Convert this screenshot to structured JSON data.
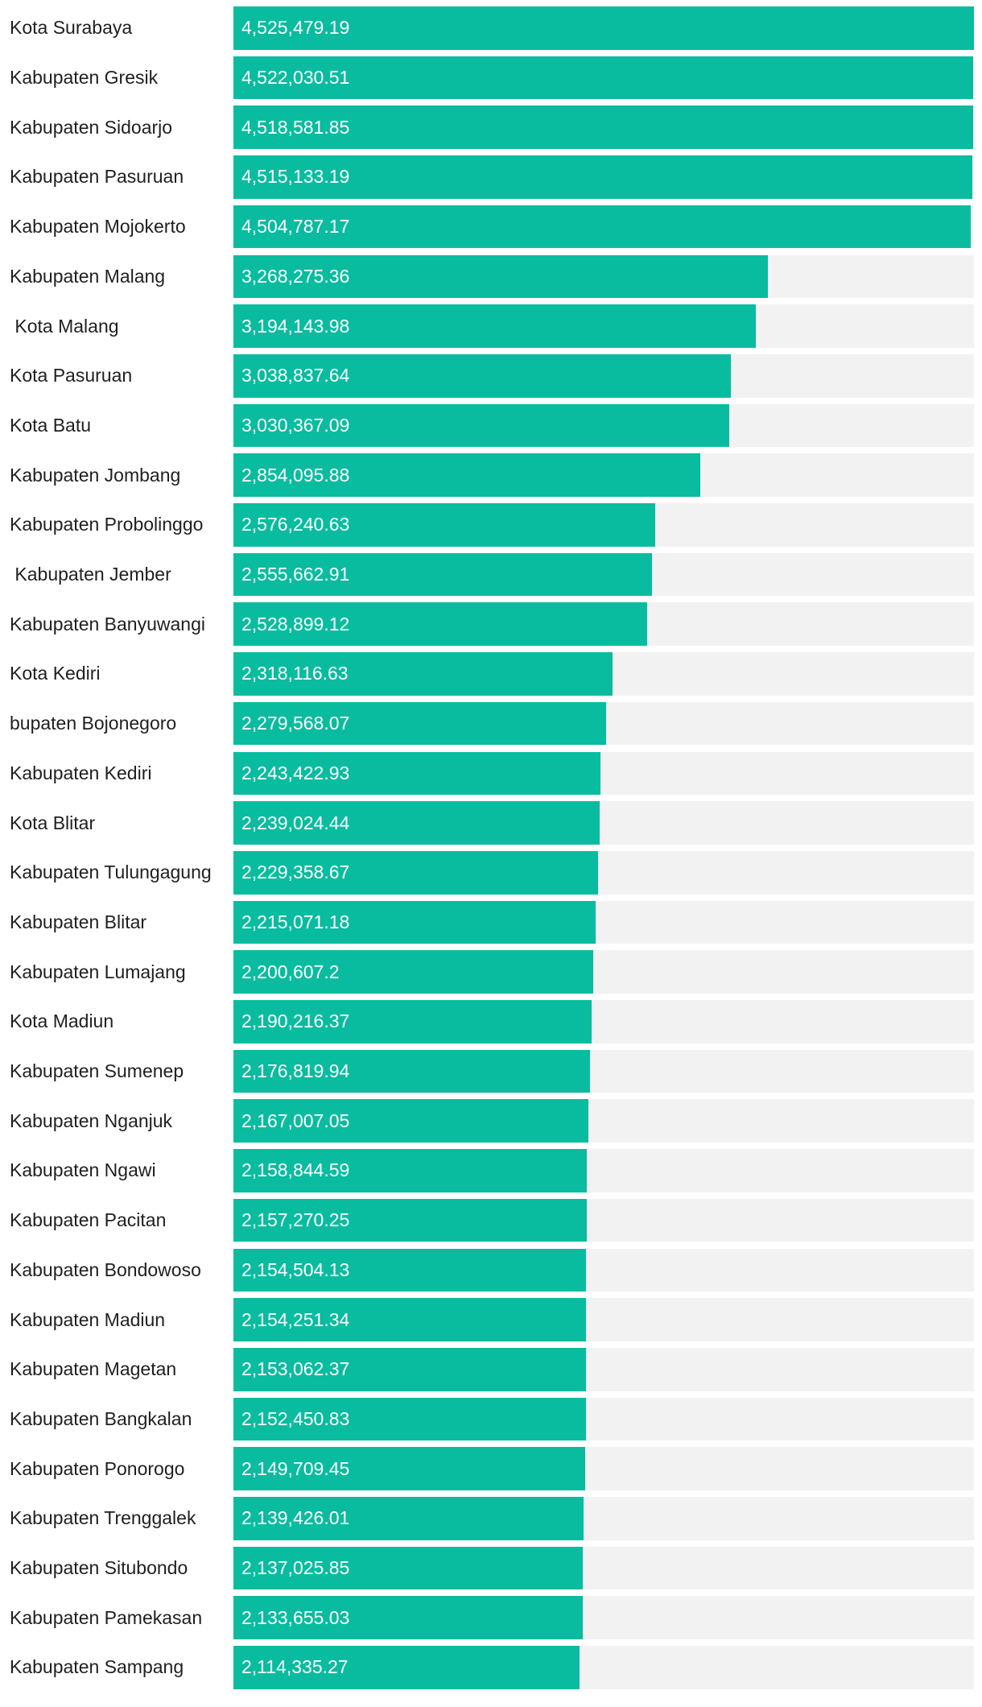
{
  "chart_data": {
    "type": "bar",
    "orientation": "horizontal",
    "title": "",
    "xlabel": "",
    "ylabel": "",
    "xlim": [
      0,
      4525479.19
    ],
    "grid": false,
    "legend": "none",
    "bar_color": "#0abc9f",
    "track_color": "#f2f2f2",
    "categories": [
      "Kota Surabaya",
      "Kabupaten Gresik",
      "Kabupaten Sidoarjo",
      "Kabupaten Pasuruan",
      "Kabupaten Mojokerto",
      "Kabupaten Malang",
      " Kota Malang",
      "Kota Pasuruan",
      "Kota Batu",
      "Kabupaten Jombang",
      "Kabupaten Probolinggo",
      " Kabupaten Jember",
      "Kabupaten Banyuwangi",
      "Kota Kediri",
      "bupaten Bojonegoro",
      "Kabupaten Kediri",
      "Kota Blitar",
      "Kabupaten Tulungagung",
      "Kabupaten Blitar",
      "Kabupaten Lumajang",
      "Kota Madiun",
      "Kabupaten Sumenep",
      "Kabupaten Nganjuk",
      "Kabupaten Ngawi",
      "Kabupaten Pacitan",
      "Kabupaten Bondowoso",
      "Kabupaten Madiun",
      "Kabupaten Magetan",
      "Kabupaten Bangkalan",
      "Kabupaten Ponorogo",
      "Kabupaten Trenggalek",
      "Kabupaten Situbondo",
      "Kabupaten Pamekasan",
      "Kabupaten Sampang"
    ],
    "values": [
      4525479.19,
      4522030.51,
      4518581.85,
      4515133.19,
      4504787.17,
      3268275.36,
      3194143.98,
      3038837.64,
      3030367.09,
      2854095.88,
      2576240.63,
      2555662.91,
      2528899.12,
      2318116.63,
      2279568.07,
      2243422.93,
      2239024.44,
      2229358.67,
      2215071.18,
      2200607.2,
      2190216.37,
      2176819.94,
      2167007.05,
      2158844.59,
      2157270.25,
      2154504.13,
      2154251.34,
      2153062.37,
      2152450.83,
      2149709.45,
      2139426.01,
      2137025.85,
      2133655.03,
      2114335.27
    ],
    "value_labels": [
      "4,525,479.19",
      "4,522,030.51",
      "4,518,581.85",
      "4,515,133.19",
      "4,504,787.17",
      "3,268,275.36",
      "3,194,143.98",
      "3,038,837.64",
      "3,030,367.09",
      "2,854,095.88",
      "2,576,240.63",
      "2,555,662.91",
      "2,528,899.12",
      "2,318,116.63",
      "2,279,568.07",
      "2,243,422.93",
      "2,239,024.44",
      "2,229,358.67",
      "2,215,071.18",
      "2,200,607.2",
      "2,190,216.37",
      "2,176,819.94",
      "2,167,007.05",
      "2,158,844.59",
      "2,157,270.25",
      "2,154,504.13",
      "2,154,251.34",
      "2,153,062.37",
      "2,152,450.83",
      "2,149,709.45",
      "2,139,426.01",
      "2,137,025.85",
      "2,133,655.03",
      "2,114,335.27"
    ]
  }
}
